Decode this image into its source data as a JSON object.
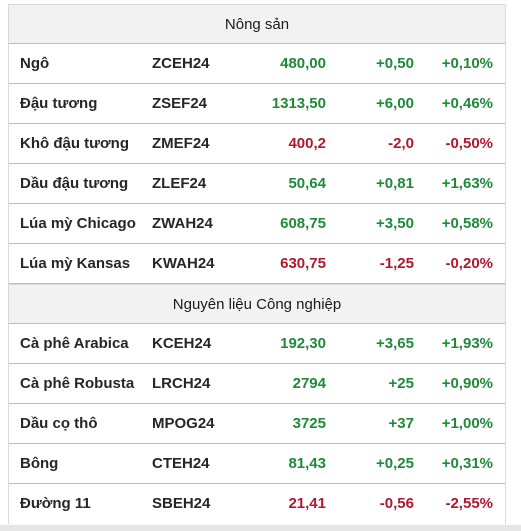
{
  "sections": [
    {
      "title": "Nông sản",
      "rows": [
        {
          "name": "Ngô",
          "code": "ZCEH24",
          "price": "480,00",
          "change": "+0,50",
          "pct": "+0,10%",
          "trend": "up"
        },
        {
          "name": "Đậu tương",
          "code": "ZSEF24",
          "price": "1313,50",
          "change": "+6,00",
          "pct": "+0,46%",
          "trend": "up"
        },
        {
          "name": "Khô đậu tương",
          "code": "ZMEF24",
          "price": "400,2",
          "change": "-2,0",
          "pct": "-0,50%",
          "trend": "down"
        },
        {
          "name": "Dầu đậu tương",
          "code": "ZLEF24",
          "price": "50,64",
          "change": "+0,81",
          "pct": "+1,63%",
          "trend": "up"
        },
        {
          "name": "Lúa mỳ Chicago",
          "code": "ZWAH24",
          "price": "608,75",
          "change": "+3,50",
          "pct": "+0,58%",
          "trend": "up"
        },
        {
          "name": "Lúa mỳ Kansas",
          "code": "KWAH24",
          "price": "630,75",
          "change": "-1,25",
          "pct": "-0,20%",
          "trend": "down"
        }
      ]
    },
    {
      "title": "Nguyên liệu Công nghiệp",
      "rows": [
        {
          "name": "Cà phê Arabica",
          "code": "KCEH24",
          "price": "192,30",
          "change": "+3,65",
          "pct": "+1,93%",
          "trend": "up"
        },
        {
          "name": "Cà phê Robusta",
          "code": "LRCH24",
          "price": "2794",
          "change": "+25",
          "pct": "+0,90%",
          "trend": "up"
        },
        {
          "name": "Dầu cọ thô",
          "code": "MPOG24",
          "price": "3725",
          "change": "+37",
          "pct": "+1,00%",
          "trend": "up"
        },
        {
          "name": "Bông",
          "code": "CTEH24",
          "price": "81,43",
          "change": "+0,25",
          "pct": "+0,31%",
          "trend": "up"
        },
        {
          "name": "Đường 11",
          "code": "SBEH24",
          "price": "21,41",
          "change": "-0,56",
          "pct": "-2,55%",
          "trend": "down"
        }
      ]
    }
  ],
  "colors": {
    "up": "#1e8a3a",
    "down": "#b0182e",
    "header_bg": "#f2f2f2"
  }
}
